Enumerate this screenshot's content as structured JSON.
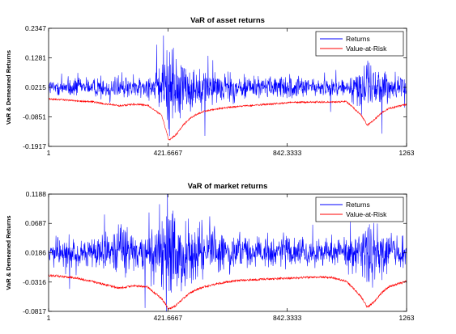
{
  "chart_data": [
    {
      "type": "line",
      "title": "VaR of asset returns",
      "xlabel": "",
      "ylabel": "VaR & Demeaned Returns",
      "xlim": [
        1,
        1263
      ],
      "ylim": [
        -0.1917,
        0.2347
      ],
      "xticks": [
        "1",
        "421.6667",
        "842.3333",
        "1263"
      ],
      "yticks": [
        "0.2347",
        "0.1281",
        "0.0215",
        "-0.0851",
        "-0.1917"
      ],
      "legend_position": "top-right",
      "series": [
        {
          "name": "Returns",
          "color": "#0000ff",
          "baseline": 0.0215,
          "x": [
            1,
            50,
            100,
            150,
            200,
            250,
            300,
            350,
            400,
            425,
            450,
            475,
            500,
            525,
            550,
            600,
            650,
            700,
            750,
            800,
            850,
            900,
            950,
            1000,
            1050,
            1100,
            1125,
            1150,
            1175,
            1200,
            1263
          ],
          "amplitude": [
            0.018,
            0.019,
            0.02,
            0.019,
            0.024,
            0.03,
            0.025,
            0.024,
            0.045,
            0.11,
            0.09,
            0.065,
            0.05,
            0.042,
            0.04,
            0.034,
            0.03,
            0.026,
            0.024,
            0.022,
            0.021,
            0.02,
            0.02,
            0.02,
            0.018,
            0.04,
            0.065,
            0.055,
            0.04,
            0.03,
            0.024
          ]
        },
        {
          "name": "Value-at-Risk",
          "color": "#ff0000",
          "x": [
            1,
            50,
            100,
            150,
            200,
            250,
            300,
            350,
            400,
            425,
            450,
            475,
            500,
            525,
            550,
            600,
            650,
            700,
            750,
            800,
            850,
            900,
            950,
            1000,
            1050,
            1100,
            1125,
            1150,
            1175,
            1200,
            1263
          ],
          "values": [
            -0.021,
            -0.023,
            -0.028,
            -0.03,
            -0.038,
            -0.045,
            -0.04,
            -0.042,
            -0.08,
            -0.17,
            -0.15,
            -0.115,
            -0.09,
            -0.075,
            -0.065,
            -0.055,
            -0.05,
            -0.045,
            -0.041,
            -0.038,
            -0.033,
            -0.032,
            -0.031,
            -0.032,
            -0.03,
            -0.075,
            -0.115,
            -0.095,
            -0.07,
            -0.055,
            -0.04
          ]
        }
      ]
    },
    {
      "type": "line",
      "title": "VaR of market returns",
      "xlabel": "",
      "ylabel": "VaR & Demeaned Returns",
      "xlim": [
        1,
        1263
      ],
      "ylim": [
        -0.0817,
        0.1188
      ],
      "xticks": [
        "1",
        "421.6667",
        "842.3333",
        "1263"
      ],
      "yticks": [
        "0.1188",
        "0.0687",
        "0.0186",
        "-0.0316",
        "-0.0817"
      ],
      "legend_position": "top-right",
      "series": [
        {
          "name": "Returns",
          "color": "#0000ff",
          "baseline": 0.0186,
          "x": [
            1,
            50,
            100,
            150,
            200,
            250,
            300,
            350,
            400,
            425,
            450,
            475,
            500,
            525,
            550,
            600,
            650,
            700,
            750,
            800,
            850,
            900,
            950,
            1000,
            1050,
            1100,
            1125,
            1150,
            1175,
            1200,
            1263
          ],
          "amplitude": [
            0.012,
            0.013,
            0.014,
            0.014,
            0.018,
            0.025,
            0.02,
            0.022,
            0.04,
            0.06,
            0.05,
            0.038,
            0.03,
            0.026,
            0.024,
            0.021,
            0.019,
            0.018,
            0.017,
            0.016,
            0.016,
            0.015,
            0.015,
            0.016,
            0.016,
            0.026,
            0.034,
            0.03,
            0.024,
            0.019,
            0.016
          ]
        },
        {
          "name": "Value-at-Risk",
          "color": "#ff0000",
          "x": [
            1,
            50,
            100,
            150,
            200,
            250,
            300,
            350,
            400,
            425,
            450,
            475,
            500,
            525,
            550,
            600,
            650,
            700,
            750,
            800,
            850,
            900,
            950,
            1000,
            1050,
            1100,
            1125,
            1150,
            1175,
            1200,
            1263
          ],
          "values": [
            -0.02,
            -0.022,
            -0.025,
            -0.03,
            -0.036,
            -0.042,
            -0.038,
            -0.04,
            -0.06,
            -0.078,
            -0.072,
            -0.06,
            -0.05,
            -0.044,
            -0.04,
            -0.034,
            -0.03,
            -0.028,
            -0.027,
            -0.026,
            -0.025,
            -0.024,
            -0.023,
            -0.024,
            -0.03,
            -0.055,
            -0.075,
            -0.065,
            -0.05,
            -0.04,
            -0.03
          ]
        }
      ]
    }
  ]
}
